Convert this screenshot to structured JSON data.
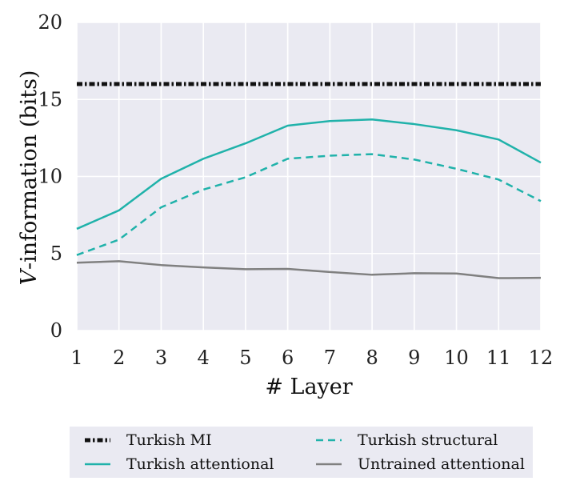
{
  "chart_data": {
    "type": "line",
    "xlabel": "# Layer",
    "ylabel": "V-information (bits)",
    "x": [
      1,
      2,
      3,
      4,
      5,
      6,
      7,
      8,
      9,
      10,
      11,
      12
    ],
    "xlim": [
      1,
      12
    ],
    "ylim": [
      0,
      20
    ],
    "yticks": [
      0,
      5,
      10,
      15,
      20
    ],
    "grid": true,
    "legend_position": "bottom",
    "series": [
      {
        "name": "Turkish MI",
        "style": "dash-dot",
        "color": "#111111",
        "values": [
          16.0,
          16.0,
          16.0,
          16.0,
          16.0,
          16.0,
          16.0,
          16.0,
          16.0,
          16.0,
          16.0,
          16.0
        ]
      },
      {
        "name": "Turkish structural",
        "style": "dashed",
        "color": "#20b2aa",
        "values": [
          4.9,
          5.9,
          8.0,
          9.15,
          9.95,
          11.15,
          11.35,
          11.45,
          11.1,
          10.5,
          9.8,
          8.4
        ]
      },
      {
        "name": "Turkish attentional",
        "style": "solid",
        "color": "#20b2aa",
        "values": [
          6.6,
          7.8,
          9.85,
          11.15,
          12.15,
          13.3,
          13.6,
          13.7,
          13.4,
          13.0,
          12.4,
          10.9
        ]
      },
      {
        "name": "Untrained attentional",
        "style": "solid",
        "color": "#808080",
        "values": [
          4.4,
          4.5,
          4.25,
          4.1,
          3.98,
          4.0,
          3.8,
          3.62,
          3.72,
          3.7,
          3.4,
          3.42
        ]
      }
    ]
  }
}
